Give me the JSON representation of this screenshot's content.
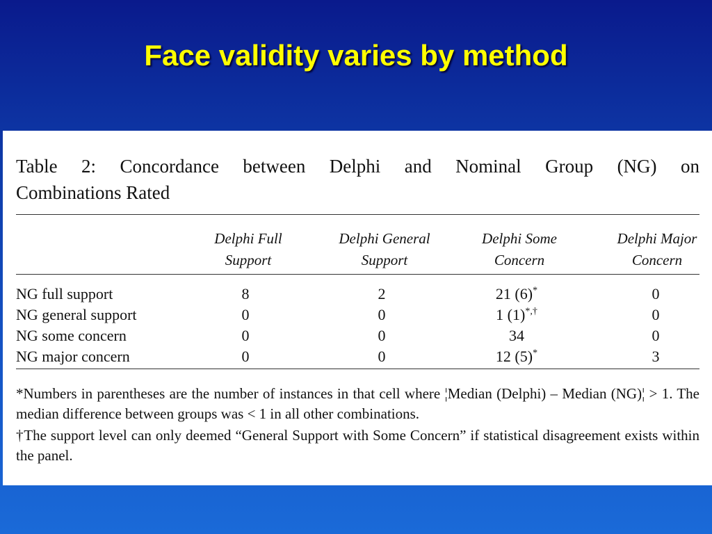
{
  "slide": {
    "title": "Face validity varies by method"
  },
  "table": {
    "caption_line1": "Table 2:  Concordance between Delphi and Nominal Group (NG) on",
    "caption_line2": "Combinations Rated",
    "column_headers": [
      {
        "line1": "Delphi Full",
        "line2": "Support"
      },
      {
        "line1": "Delphi General",
        "line2": "Support"
      },
      {
        "line1": "Delphi Some",
        "line2": "Concern"
      },
      {
        "line1": "Delphi Major",
        "line2": "Concern"
      }
    ],
    "rows": [
      {
        "label": "NG full support",
        "cells": [
          "8",
          "2",
          "21 (6)",
          "0"
        ],
        "marks": [
          "",
          "",
          "*",
          ""
        ]
      },
      {
        "label": "NG general support",
        "cells": [
          "0",
          "0",
          "1 (1)",
          "0"
        ],
        "marks": [
          "",
          "",
          "*,†",
          ""
        ]
      },
      {
        "label": "NG some concern",
        "cells": [
          "0",
          "0",
          "34",
          "0"
        ],
        "marks": [
          "",
          "",
          "",
          ""
        ]
      },
      {
        "label": "NG major concern",
        "cells": [
          "0",
          "0",
          "12 (5)",
          "3"
        ],
        "marks": [
          "",
          "",
          "*",
          ""
        ]
      }
    ],
    "footnotes": [
      "*Numbers in parentheses are the number of instances in that cell where ¦Median (Delphi) – Median (NG)¦ > 1. The median difference between groups was < 1 in all other combinations.",
      "†The support level can only deemed “General Support with Some Concern” if statistical disagreement exists within the panel."
    ]
  }
}
